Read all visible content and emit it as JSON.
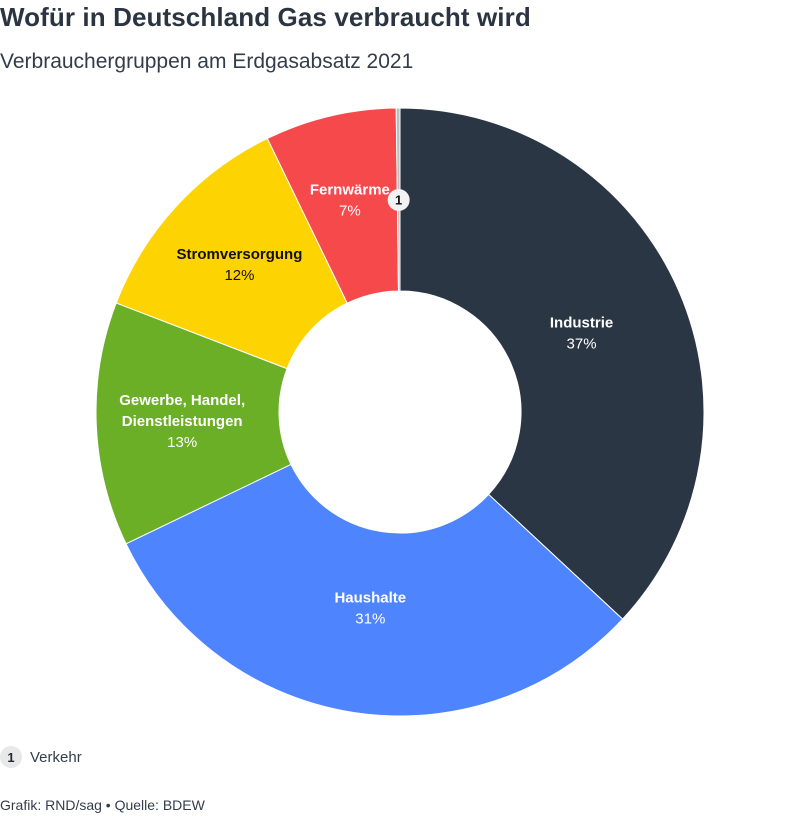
{
  "title": "Wofür in Deutschland Gas verbraucht wird",
  "subtitle": "Verbrauchergruppen am Erdgasabsatz 2021",
  "legend": {
    "badge": "1",
    "label": "Verkehr"
  },
  "source": "Grafik: RND/sag • Quelle: BDEW",
  "chart_data": {
    "type": "pie",
    "variant": "donut",
    "slices": [
      {
        "label": "Industrie",
        "value": 37,
        "value_label": "37%",
        "color": "#2b3645",
        "text_color": "#ffffff"
      },
      {
        "label": "Haushalte",
        "value": 31,
        "value_label": "31%",
        "color": "#4f84ff",
        "text_color": "#ffffff"
      },
      {
        "label_lines": [
          "Gewerbe, Handel,",
          "Dienstleistungen"
        ],
        "label": "Gewerbe, Handel, Dienstleistungen",
        "value": 13,
        "value_label": "13%",
        "color": "#6aaf26",
        "text_color": "#ffffff"
      },
      {
        "label": "Stromversorgung",
        "value": 12,
        "value_label": "12%",
        "color": "#fdd402",
        "text_color": "#111111"
      },
      {
        "label": "Fernwärme",
        "value": 7,
        "value_label": "7%",
        "color": "#f5494c",
        "text_color": "#ffffff"
      },
      {
        "label": "Verkehr",
        "value": 0.2,
        "value_label": "",
        "badge": "1",
        "color": "#bdbdbd",
        "text_color": "#111111"
      }
    ]
  }
}
